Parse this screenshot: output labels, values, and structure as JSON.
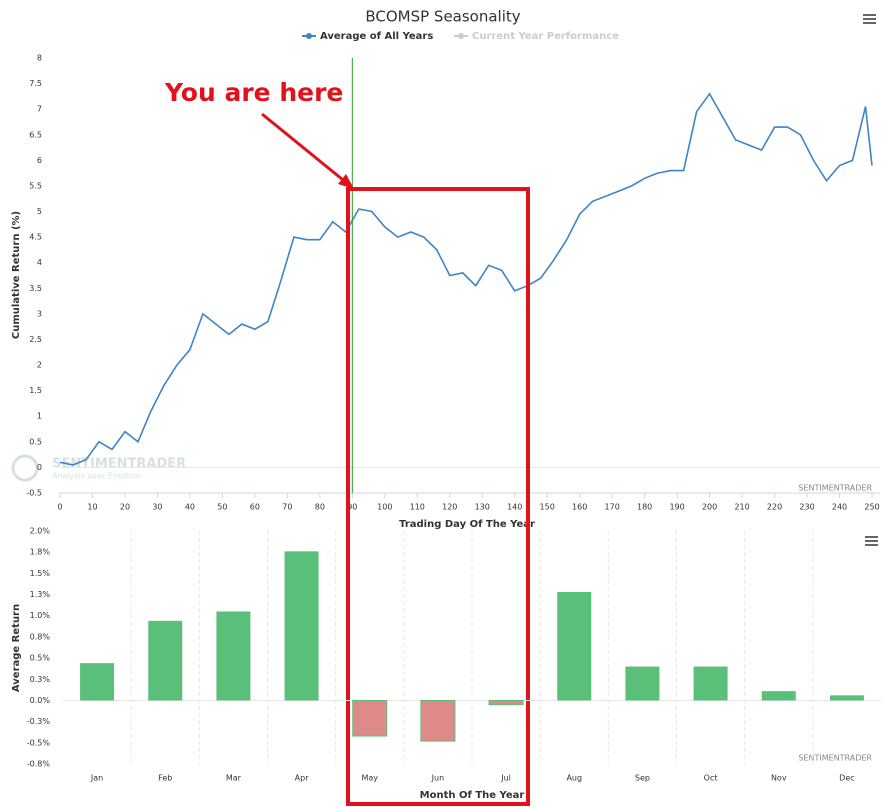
{
  "chart_data": [
    {
      "type": "line",
      "title": "BCOMSP Seasonality",
      "x_label": "Trading Day Of The Year",
      "y_label": "Cumulative Return (%)",
      "x": [
        0,
        4,
        8,
        12,
        16,
        20,
        24,
        28,
        32,
        36,
        40,
        44,
        48,
        52,
        56,
        60,
        64,
        68,
        72,
        76,
        80,
        84,
        88,
        92,
        96,
        100,
        104,
        108,
        112,
        116,
        120,
        124,
        128,
        132,
        136,
        140,
        144,
        148,
        152,
        156,
        160,
        164,
        168,
        172,
        176,
        180,
        184,
        188,
        192,
        196,
        200,
        204,
        208,
        212,
        216,
        220,
        224,
        228,
        232,
        236,
        240,
        244,
        248,
        250
      ],
      "series": [
        {
          "name": "Average of All Years",
          "color": "#3d85c6",
          "values": [
            0.1,
            0.05,
            0.15,
            0.5,
            0.35,
            0.7,
            0.5,
            1.1,
            1.6,
            2.0,
            2.3,
            3.0,
            2.8,
            2.6,
            2.8,
            2.7,
            2.85,
            3.65,
            4.5,
            4.45,
            4.45,
            4.8,
            4.6,
            5.05,
            5.0,
            4.7,
            4.5,
            4.6,
            4.5,
            4.25,
            3.75,
            3.8,
            3.55,
            3.95,
            3.85,
            3.45,
            3.55,
            3.7,
            4.05,
            4.45,
            4.95,
            5.2,
            5.3,
            5.4,
            5.5,
            5.65,
            5.75,
            5.8,
            5.8,
            6.95,
            7.3,
            6.85,
            6.4,
            6.3,
            6.2,
            6.65,
            6.65,
            6.5,
            6.0,
            5.6,
            5.9,
            6.0,
            7.05,
            5.9
          ]
        },
        {
          "name": "Current Year Performance",
          "color": "#cccccc",
          "visible": false
        }
      ],
      "xlim": [
        0,
        250
      ],
      "xticks": [
        0,
        10,
        20,
        30,
        40,
        50,
        60,
        70,
        80,
        90,
        100,
        110,
        120,
        130,
        140,
        150,
        160,
        170,
        180,
        190,
        200,
        210,
        220,
        230,
        240,
        250
      ],
      "ylim": [
        -0.5,
        8
      ],
      "yticks": [
        -0.5,
        0,
        0.5,
        1,
        1.5,
        2,
        2.5,
        3,
        3.5,
        4,
        4.5,
        5,
        5.5,
        6,
        6.5,
        7,
        7.5,
        8
      ],
      "zero_line": true,
      "annotation": {
        "text": "You are here",
        "marker_x": 90,
        "marker_color": "#2e9a2e",
        "color": "#e0121b"
      },
      "watermark": {
        "name": "SENTIMENTRADER",
        "tagline": "Analysis over Emotion"
      },
      "credits": "SENTIMENTRADER"
    },
    {
      "type": "bar",
      "x_label": "Month Of The Year",
      "y_label": "Average Return",
      "categories": [
        "Jan",
        "Feb",
        "Mar",
        "Apr",
        "May",
        "Jun",
        "Jul",
        "Aug",
        "Sep",
        "Oct",
        "Nov",
        "Dec"
      ],
      "values": [
        0.44,
        0.94,
        1.05,
        1.76,
        -0.42,
        -0.48,
        -0.05,
        1.28,
        0.4,
        0.4,
        0.11,
        0.06
      ],
      "positive_color": "#5abf78",
      "negative_color": "#de8a8a",
      "ylim": [
        -0.75,
        2.0
      ],
      "yticks": [
        {
          "value": -0.75,
          "label": "-0.8%"
        },
        {
          "value": -0.5,
          "label": "-0.5%"
        },
        {
          "value": -0.25,
          "label": "-0.3%"
        },
        {
          "value": 0,
          "label": "0.0%"
        },
        {
          "value": 0.25,
          "label": "0.3%"
        },
        {
          "value": 0.5,
          "label": "0.5%"
        },
        {
          "value": 0.75,
          "label": "0.8%"
        },
        {
          "value": 1.0,
          "label": "1.0%"
        },
        {
          "value": 1.25,
          "label": "1.3%"
        },
        {
          "value": 1.5,
          "label": "1.5%"
        },
        {
          "value": 1.75,
          "label": "1.8%"
        },
        {
          "value": 2.0,
          "label": "2.0%"
        }
      ],
      "credits": "SENTIMENTRADER"
    }
  ]
}
